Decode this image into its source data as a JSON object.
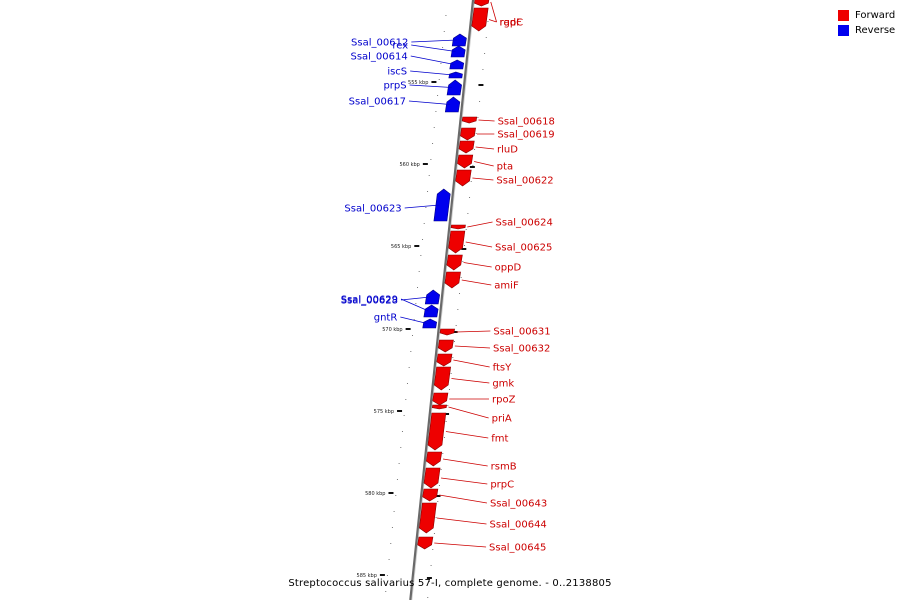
{
  "legend": {
    "forward_label": "Forward",
    "reverse_label": "Reverse",
    "forward_color": "#ee0000",
    "reverse_color": "#0000ee"
  },
  "caption": "Streptococcus salivarius 57-I, complete genome. - 0..2138805",
  "ruler": {
    "ticks": [
      {
        "label": "555 kbp"
      },
      {
        "label": "560 kbp"
      },
      {
        "label": "565 kbp"
      },
      {
        "label": "570 kbp"
      },
      {
        "label": "575 kbp"
      },
      {
        "label": "580 kbp"
      },
      {
        "label": "585 kbp"
      }
    ]
  },
  "genes": [
    {
      "name": "rgpF",
      "strand": "forward"
    },
    {
      "name": "radC",
      "strand": "forward"
    },
    {
      "name": "Ssal_00612",
      "strand": "reverse"
    },
    {
      "name": "rex",
      "strand": "reverse"
    },
    {
      "name": "Ssal_00614",
      "strand": "reverse"
    },
    {
      "name": "iscS",
      "strand": "reverse"
    },
    {
      "name": "prpS",
      "strand": "reverse"
    },
    {
      "name": "Ssal_00617",
      "strand": "reverse"
    },
    {
      "name": "Ssal_00618",
      "strand": "forward"
    },
    {
      "name": "Ssal_00619",
      "strand": "forward"
    },
    {
      "name": "rluD",
      "strand": "forward"
    },
    {
      "name": "pta",
      "strand": "forward"
    },
    {
      "name": "Ssal_00622",
      "strand": "forward"
    },
    {
      "name": "Ssal_00623",
      "strand": "reverse"
    },
    {
      "name": "Ssal_00624",
      "strand": "forward"
    },
    {
      "name": "Ssal_00625",
      "strand": "forward"
    },
    {
      "name": "oppD",
      "strand": "forward"
    },
    {
      "name": "amiF",
      "strand": "forward"
    },
    {
      "name": "Ssal_00628",
      "strand": "reverse"
    },
    {
      "name": "Ssal_00629",
      "strand": "reverse"
    },
    {
      "name": "gntR",
      "strand": "reverse"
    },
    {
      "name": "Ssal_00631",
      "strand": "forward"
    },
    {
      "name": "Ssal_00632",
      "strand": "forward"
    },
    {
      "name": "ftsY",
      "strand": "forward"
    },
    {
      "name": "gmk",
      "strand": "forward"
    },
    {
      "name": "rpoZ",
      "strand": "forward"
    },
    {
      "name": "priA",
      "strand": "forward"
    },
    {
      "name": "fmt",
      "strand": "forward"
    },
    {
      "name": "rsmB",
      "strand": "forward"
    },
    {
      "name": "prpC",
      "strand": "forward"
    },
    {
      "name": "Ssal_00643",
      "strand": "forward"
    },
    {
      "name": "Ssal_00644",
      "strand": "forward"
    },
    {
      "name": "Ssal_00645",
      "strand": "forward"
    }
  ]
}
